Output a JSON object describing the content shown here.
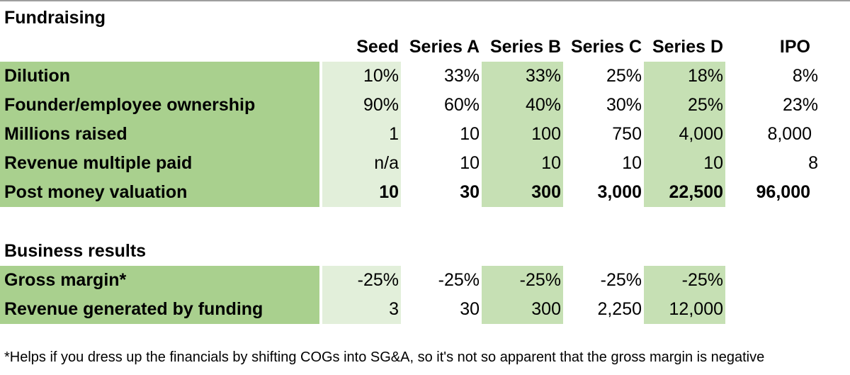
{
  "fundraising": {
    "title": "Fundraising",
    "columns": [
      "Seed",
      "Series A",
      "Series B",
      "Series C",
      "Series D",
      "IPO"
    ],
    "rows": [
      {
        "label": "Dilution",
        "values": [
          "10%",
          "33%",
          "33%",
          "25%",
          "18%",
          "8%"
        ]
      },
      {
        "label": "Founder/employee ownership",
        "values": [
          "90%",
          "60%",
          "40%",
          "30%",
          "25%",
          "23%"
        ]
      },
      {
        "label": "Millions raised",
        "values": [
          "1",
          "10",
          "100",
          "750",
          "4,000",
          "8,000"
        ]
      },
      {
        "label": "Revenue multiple paid",
        "values": [
          "n/a",
          "10",
          "10",
          "10",
          "10",
          "8"
        ]
      },
      {
        "label": "Post money valuation",
        "values": [
          "10",
          "30",
          "300",
          "3,000",
          "22,500",
          "96,000"
        ]
      }
    ]
  },
  "business_results": {
    "title": "Business results",
    "rows": [
      {
        "label": "Gross margin*",
        "values": [
          "-25%",
          "-25%",
          "-25%",
          "-25%",
          "-25%"
        ]
      },
      {
        "label": "Revenue generated by funding",
        "values": [
          "3",
          "30",
          "300",
          "2,250",
          "12,000"
        ]
      }
    ]
  },
  "footnote": "*Helps if you dress up the financials by shifting COGs into SG&A, so it's not so apparent that the gross margin is negative",
  "colors": {
    "label_fill": "#a9d08e",
    "seed_fill": "#e2efda",
    "highlight_fill": "#c6e0b4"
  }
}
